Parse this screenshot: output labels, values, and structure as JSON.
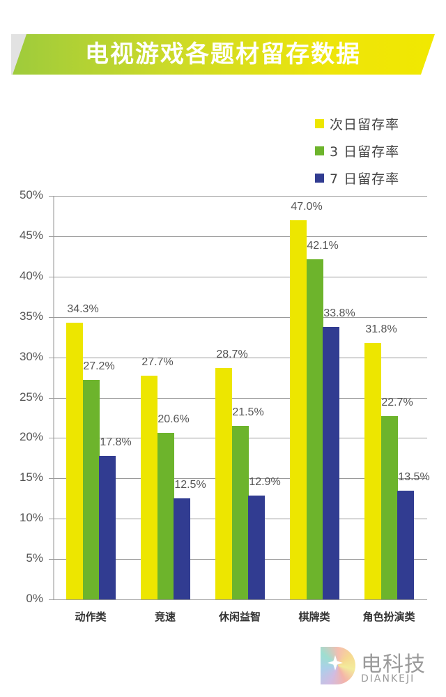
{
  "title": "电视游戏各题材留存数据",
  "colors": {
    "next_day": "#ede600",
    "day3": "#6db42c",
    "day7": "#313c91",
    "banner_start": "#9ecb3c",
    "banner_end": "#f1e800"
  },
  "legend": [
    {
      "label": "次日留存率",
      "color": "#ede600"
    },
    {
      "label": "3 日留存率",
      "color": "#6db42c"
    },
    {
      "label": "7 日留存率",
      "color": "#313c91"
    }
  ],
  "yaxis": {
    "ticks": [
      "0%",
      "5%",
      "10%",
      "15%",
      "20%",
      "25%",
      "30%",
      "35%",
      "40%",
      "45%",
      "50%"
    ]
  },
  "categories": [
    "动作类",
    "竞速",
    "休闲益智",
    "棋牌类",
    "角色扮演类"
  ],
  "labels": {
    "next_day": [
      "34.3%",
      "27.7%",
      "28.7%",
      "47.0%",
      "31.8%"
    ],
    "day3": [
      "27.2%",
      "20.6%",
      "21.5%",
      "42.1%",
      "22.7%"
    ],
    "day7": [
      "17.8%",
      "12.5%",
      "12.9%",
      "33.8%",
      "13.5%"
    ]
  },
  "logo": {
    "cn": "电科技",
    "en": "DIANKEJI"
  },
  "chart_data": {
    "type": "bar",
    "title": "电视游戏各题材留存数据",
    "categories": [
      "动作类",
      "竞速",
      "休闲益智",
      "棋牌类",
      "角色扮演类"
    ],
    "series": [
      {
        "name": "次日留存率",
        "color": "#ede600",
        "values": [
          34.3,
          27.7,
          28.7,
          47.0,
          31.8
        ]
      },
      {
        "name": "3 日留存率",
        "color": "#6db42c",
        "values": [
          27.2,
          20.6,
          21.5,
          42.1,
          22.7
        ]
      },
      {
        "name": "7 日留存率",
        "color": "#313c91",
        "values": [
          17.8,
          12.5,
          12.9,
          33.8,
          13.5
        ]
      }
    ],
    "xlabel": "",
    "ylabel": "",
    "ylim": [
      0,
      50
    ],
    "yticks": [
      "0%",
      "5%",
      "10%",
      "15%",
      "20%",
      "25%",
      "30%",
      "35%",
      "40%",
      "45%",
      "50%"
    ],
    "grid": true,
    "legend_position": "top-right",
    "data_labels": true
  }
}
